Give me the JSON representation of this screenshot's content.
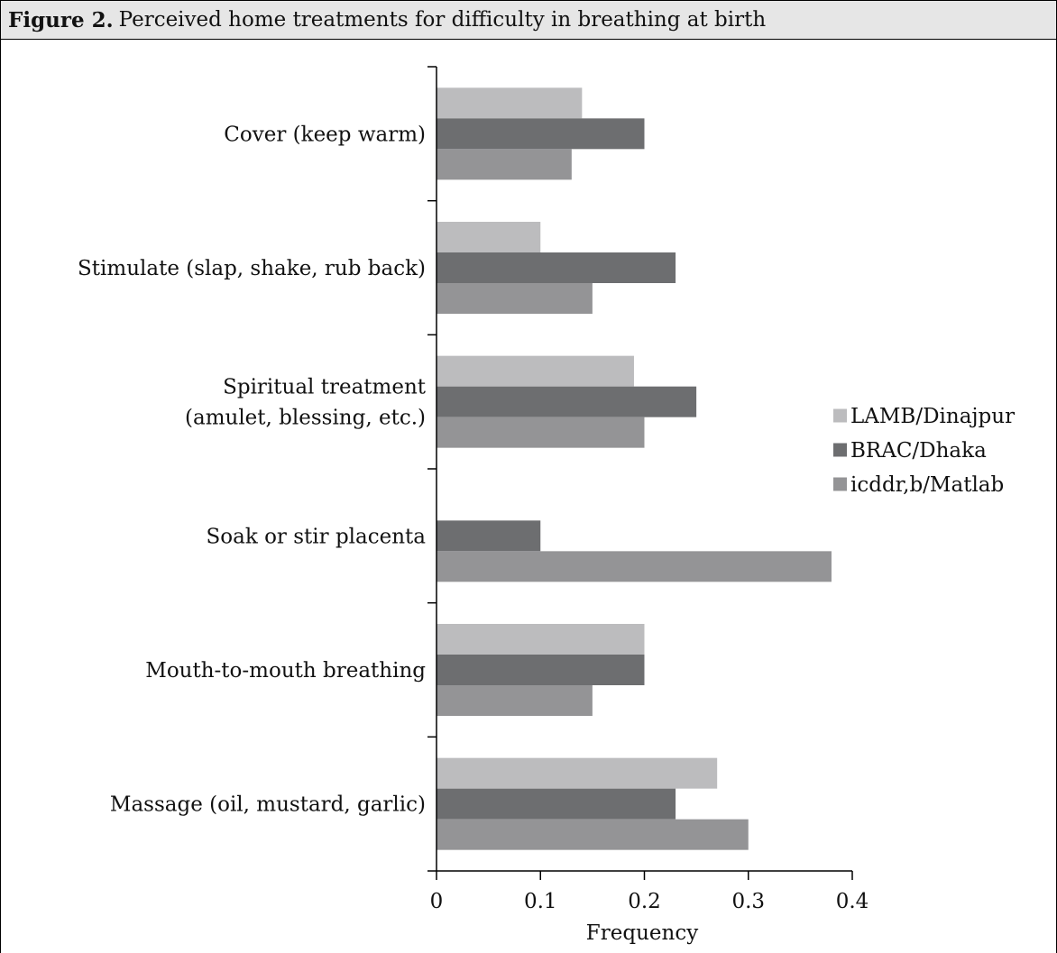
{
  "figure": {
    "number_label": "Figure 2.",
    "caption": "Perceived home treatments for difficulty in breathing at birth"
  },
  "colors": {
    "LAMB/Dinajpur": "#bcbcbe",
    "BRAC/Dhaka": "#6d6e70",
    "icddr,b/Matlab": "#949496"
  },
  "chart_data": {
    "type": "bar",
    "orientation": "horizontal",
    "title": "",
    "xlabel": "Frequency",
    "ylabel": "",
    "xlim": [
      0,
      0.4
    ],
    "xticks": [
      "0",
      "0.1",
      "0.2",
      "0.3",
      "0.4"
    ],
    "categories": [
      [
        "Cover (keep warm)"
      ],
      [
        "Stimulate (slap, shake, rub back)"
      ],
      [
        "Spiritual treatment",
        "(amulet, blessing, etc.)"
      ],
      [
        "Soak or stir placenta"
      ],
      [
        "Mouth-to-mouth breathing"
      ],
      [
        "Massage (oil, mustard, garlic)"
      ]
    ],
    "series": [
      {
        "name": "LAMB/Dinajpur",
        "values": [
          0.14,
          0.1,
          0.19,
          0,
          0.2,
          0.27
        ]
      },
      {
        "name": "BRAC/Dhaka",
        "values": [
          0.2,
          0.23,
          0.25,
          0.1,
          0.2,
          0.23
        ]
      },
      {
        "name": "icddr,b/Matlab",
        "values": [
          0.13,
          0.15,
          0.2,
          0.38,
          0.15,
          0.3
        ]
      }
    ],
    "legend_position": "right",
    "grid": false
  }
}
